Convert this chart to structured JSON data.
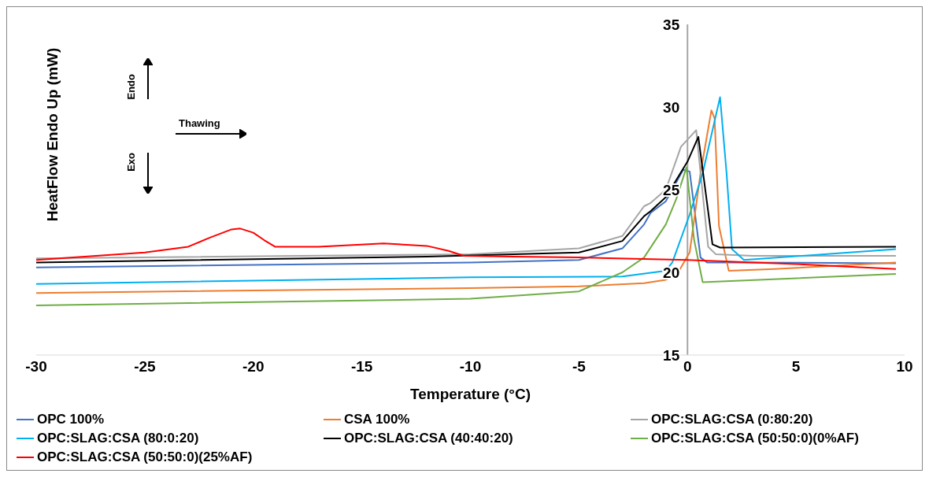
{
  "chart_data": {
    "type": "line",
    "xlabel": "Temperature (°C)",
    "ylabel": "HeatFlow Endo Up (mW)",
    "xlim": [
      -30,
      10
    ],
    "xticks": [
      -30,
      -25,
      -20,
      -15,
      -10,
      -5,
      0,
      5,
      10
    ],
    "ylim": [
      15,
      35
    ],
    "yticks": [
      15,
      20,
      25,
      30,
      35
    ],
    "grid": false,
    "legend": "bottom",
    "marker": "none",
    "line_style": "solid",
    "annotations": [
      "Endo",
      "Exo",
      "Thawing"
    ],
    "series": [
      {
        "name": "OPC 100%",
        "color": "#4472c4",
        "x": [
          -30,
          -10,
          -5,
          -3,
          -2,
          -1.7,
          -1,
          -0.2,
          0.1,
          0.6,
          0.9,
          2,
          9.6
        ],
        "values": [
          20.3,
          20.6,
          20.75,
          21.45,
          22.9,
          23.6,
          24.3,
          26.2,
          26.1,
          20.9,
          20.6,
          20.6,
          20.55
        ]
      },
      {
        "name": "CSA 100%",
        "color": "#ed7d31",
        "x": [
          -30,
          -10,
          -5,
          -2,
          -1,
          -0.5,
          0.1,
          0.6,
          1.1,
          1.25,
          1.45,
          1.9,
          4,
          9.6
        ],
        "values": [
          18.75,
          19.05,
          19.15,
          19.35,
          19.55,
          19.85,
          21.2,
          26,
          29.8,
          29.3,
          22.8,
          20.1,
          20.2,
          20.6
        ]
      },
      {
        "name": "OPC:SLAG:CSA (0:80:20)",
        "color": "#a5a5a5",
        "x": [
          -30,
          -10,
          -5,
          -3,
          -2,
          -1.7,
          -1,
          -0.3,
          0.4,
          0.95,
          1.3,
          3,
          9.6
        ],
        "values": [
          20.85,
          21.1,
          21.45,
          22.2,
          24,
          24.2,
          25,
          27.6,
          28.6,
          21.55,
          21.1,
          21,
          21
        ]
      },
      {
        "name": "OPC:SLAG:CSA (80:0:20)",
        "color": "#00b0f0",
        "x": [
          -30,
          -10,
          -3,
          -1,
          -0.7,
          0.1,
          0.7,
          1.5,
          1.8,
          2.05,
          2.6,
          9.6
        ],
        "values": [
          19.3,
          19.7,
          19.75,
          20.1,
          20.6,
          23.5,
          26,
          30.6,
          26,
          21.4,
          20.75,
          21.4
        ]
      },
      {
        "name": "OPC:SLAG:CSA (40:40:20)",
        "color": "#000000",
        "x": [
          -30,
          -12,
          -5,
          -3,
          -2,
          -1.7,
          -1,
          0,
          0.5,
          1.15,
          1.5,
          9.6
        ],
        "values": [
          20.6,
          20.95,
          21.2,
          21.9,
          23.4,
          23.7,
          24.55,
          26.7,
          28.2,
          21.7,
          21.5,
          21.55
        ]
      },
      {
        "name": "OPC:SLAG:CSA (50:50:0)(0%AF)",
        "color": "#70ad47",
        "x": [
          -30,
          -10,
          -5,
          -3,
          -2,
          -1,
          -0.5,
          -0.05,
          0.3,
          0.7,
          9.6
        ],
        "values": [
          18,
          18.4,
          18.85,
          20,
          20.9,
          22.9,
          24.5,
          26.35,
          22,
          19.4,
          19.9
        ]
      },
      {
        "name": "OPC:SLAG:CSA (50:50:0)(25%AF)",
        "color": "#ff0000",
        "x": [
          -30,
          -25,
          -23,
          -22,
          -21,
          -20.6,
          -20,
          -19.5,
          -19,
          -17,
          -14,
          -12,
          -11,
          -10.3,
          -8,
          -5,
          0,
          5,
          9.6
        ],
        "values": [
          20.75,
          21.2,
          21.55,
          22.1,
          22.6,
          22.65,
          22.4,
          21.95,
          21.55,
          21.55,
          21.75,
          21.6,
          21.3,
          21,
          20.95,
          20.9,
          20.75,
          20.5,
          20.2
        ]
      }
    ]
  }
}
